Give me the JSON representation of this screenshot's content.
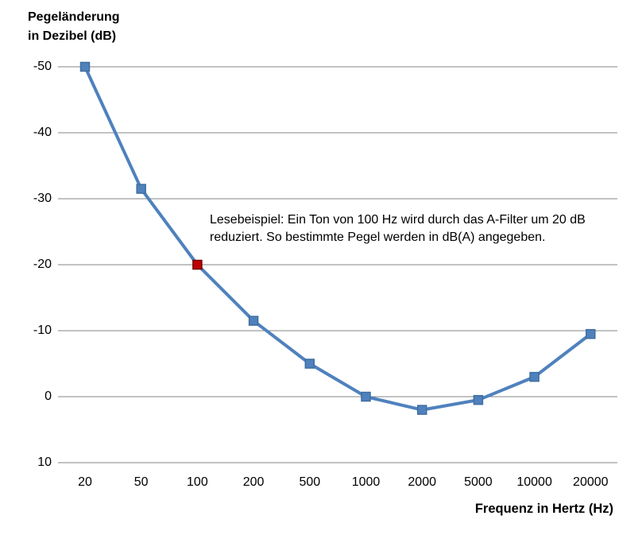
{
  "chart_data": {
    "type": "line",
    "title_lines": [
      "Pegeländerung",
      "in Dezibel (dB)"
    ],
    "xlabel": "Frequenz in Hertz (Hz)",
    "ylabel": "Pegeländerung in Dezibel (dB)",
    "categories": [
      "20",
      "50",
      "100",
      "200",
      "500",
      "1000",
      "2000",
      "5000",
      "10000",
      "20000"
    ],
    "values": [
      -50,
      -31.5,
      -20,
      -11.5,
      -5,
      0,
      2,
      0.5,
      -3,
      -9.5
    ],
    "highlight_index": 2,
    "highlight_point": {
      "category": "100",
      "value": -20
    },
    "y_ticks": [
      -50,
      -40,
      -30,
      -20,
      -10,
      0,
      10
    ],
    "ylim": [
      -50,
      10
    ],
    "y_axis_inverted": true,
    "grid": "horizontal",
    "legend": "none",
    "annotation_lines": [
      "Lesebeispiel: Ein Ton von 100 Hz wird durch das A-Filter um 20 dB",
      "reduziert. So bestimmte Pegel werden in dB(A) angegeben."
    ],
    "colors": {
      "line": "#4F81BD",
      "marker_fill": "#4F81BD",
      "marker_border": "#3F6E9F",
      "highlight_fill": "#C00000",
      "highlight_border": "#700000",
      "gridline": "#848484",
      "text": "#000000"
    }
  }
}
